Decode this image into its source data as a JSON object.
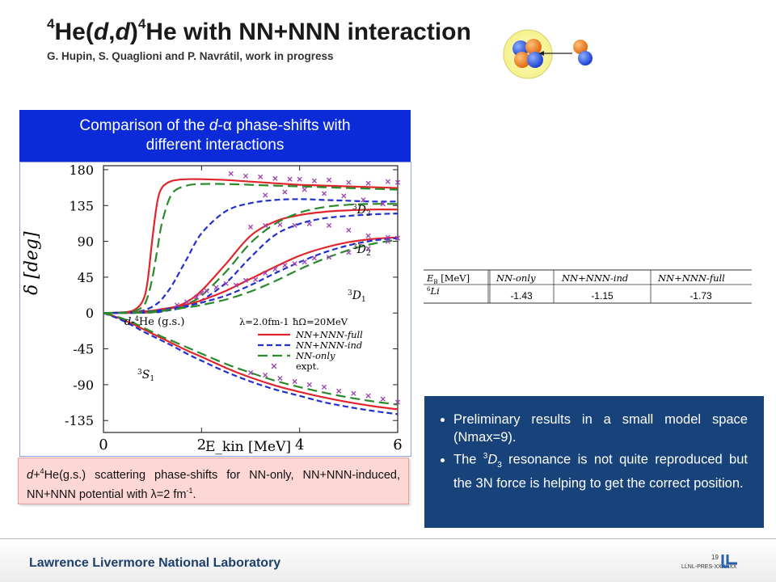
{
  "title": {
    "pre_sup": "4",
    "text_a": "He(",
    "text_d1": "d",
    "text_comma": ",",
    "text_d2": "d",
    "text_close": ")",
    "post_sup": "4",
    "text_b": "He with NN+NNN  interaction"
  },
  "subtitle": "G. Hupin, S. Quaglioni and P. Navrátil, work in progress",
  "banner": {
    "line1_a": "Comparison of the ",
    "line1_d": "d",
    "line1_dash": "-",
    "line1_alpha": "α",
    "line1_b": " phase-shifts with",
    "line2": "different interactions"
  },
  "table": {
    "header_col0_a": "E",
    "header_col0_sub": "B",
    "header_col0_b": " [MeV]",
    "header_col1": "NN-only",
    "header_col2": "NN+NNN-ind",
    "header_col3": "NN+NNN-full",
    "row_label_sup": "6",
    "row_label": "Li",
    "values": [
      "-1.43",
      "-1.15",
      "-1.73"
    ]
  },
  "caption": {
    "a": "d+",
    "sup": "4",
    "b": "He(g.s.) scattering phase-shifts for NN-only, NN+NNN-induced, NN+NNN potential with ",
    "lambda": "λ",
    "c": "=2 fm",
    "sup2": "-1",
    "d": "."
  },
  "bullets": {
    "b1": "Preliminary results in a small model space (Nmax=9).",
    "b2_a": "The ",
    "b2_sup": "3",
    "b2_D": "D",
    "b2_sub": "3",
    "b2_b": " resonance is not quite reproduced but the 3N force is helping to get the correct position."
  },
  "footer": {
    "lab": "Lawrence Livermore National Laboratory",
    "page": "19",
    "doc_id": "LLNL-PRES-XXXXXX"
  },
  "colors": {
    "full": "#e0262c",
    "ind": "#2030d0",
    "nnonly": "#2a8a2a",
    "expt": "#9b3fb0",
    "banner": "#0b2bd8",
    "bullet_box": "#17427a"
  },
  "chart_data": {
    "type": "line",
    "title": "",
    "xlabel": "E_kin [MeV]",
    "ylabel": "δ [deg]",
    "xlim": [
      0,
      6
    ],
    "ylim": [
      -150,
      185
    ],
    "x_ticks": [
      0,
      2,
      4,
      6
    ],
    "y_ticks": [
      180,
      135,
      90,
      45,
      0,
      -45,
      -90,
      -135
    ],
    "annotations": [
      "d-4He (g.s.)",
      "λ=2.0fm-1",
      "ħΩ=20MeV",
      "3D3",
      "3D2",
      "3D1",
      "3S1"
    ],
    "legend": [
      "NN+NNN-full",
      "NN+NNN-ind",
      "NN-only",
      "expt."
    ],
    "legend_position": "bottom-right",
    "x": [
      0,
      0.3,
      0.6,
      0.8,
      0.9,
      1.0,
      1.1,
      1.2,
      1.4,
      1.7,
      2.0,
      2.5,
      3.0,
      3.5,
      4.0,
      4.5,
      5.0,
      5.5,
      6.0
    ],
    "series": [
      {
        "name": "NN+NNN-full",
        "wave": "3D3",
        "values": [
          0,
          0.5,
          3,
          15,
          40,
          95,
          140,
          158,
          166,
          168,
          168,
          167,
          165,
          163,
          161,
          160,
          159,
          158,
          157
        ]
      },
      {
        "name": "NN+NNN-ind",
        "wave": "3D3",
        "values": [
          0,
          0.2,
          1,
          3,
          5,
          8,
          12,
          18,
          35,
          68,
          100,
          128,
          138,
          142,
          143,
          142,
          141,
          140,
          140
        ]
      },
      {
        "name": "NN-only",
        "wave": "3D3",
        "values": [
          0,
          0.3,
          2,
          8,
          20,
          45,
          80,
          115,
          150,
          160,
          162,
          162,
          161,
          160,
          159,
          158,
          157,
          156,
          155
        ]
      },
      {
        "name": "NN+NNN-full",
        "wave": "3D2",
        "values": [
          0,
          0,
          0.2,
          0.5,
          0.8,
          1,
          2,
          3,
          6,
          14,
          28,
          62,
          97,
          115,
          123,
          127,
          129,
          130,
          130
        ]
      },
      {
        "name": "NN+NNN-ind",
        "wave": "3D2",
        "values": [
          0,
          0,
          0.1,
          0.3,
          0.5,
          0.8,
          1,
          2,
          4,
          8,
          16,
          38,
          70,
          98,
          112,
          119,
          122,
          124,
          125
        ]
      },
      {
        "name": "NN-only",
        "wave": "3D2",
        "values": [
          0,
          0,
          0.2,
          0.4,
          0.6,
          0.9,
          1.5,
          2.5,
          5,
          11,
          22,
          52,
          88,
          112,
          126,
          133,
          136,
          137,
          137
        ]
      },
      {
        "name": "NN+NNN-full",
        "wave": "3D1",
        "values": [
          0,
          0.5,
          1,
          2,
          2.5,
          3,
          4,
          5,
          7,
          11,
          16,
          28,
          43,
          58,
          72,
          82,
          89,
          93,
          95
        ]
      },
      {
        "name": "NN+NNN-ind",
        "wave": "3D1",
        "values": [
          0,
          0.4,
          0.8,
          1.5,
          2,
          2.5,
          3,
          4,
          6,
          9,
          13,
          22,
          35,
          50,
          64,
          76,
          85,
          91,
          94
        ]
      },
      {
        "name": "NN-only",
        "wave": "3D1",
        "values": [
          0,
          0.3,
          0.6,
          1,
          1.5,
          2,
          2.5,
          3,
          4.5,
          7,
          10,
          17,
          27,
          40,
          55,
          68,
          79,
          87,
          92
        ]
      },
      {
        "name": "NN+NNN-full",
        "wave": "3S1",
        "values": [
          0,
          -6,
          -14,
          -20,
          -23,
          -26,
          -29,
          -32,
          -38,
          -47,
          -55,
          -69,
          -81,
          -91,
          -99,
          -106,
          -112,
          -117,
          -121
        ]
      },
      {
        "name": "NN+NNN-ind",
        "wave": "3S1",
        "values": [
          0,
          -7,
          -16,
          -23,
          -26,
          -29,
          -32,
          -35,
          -41,
          -51,
          -60,
          -74,
          -86,
          -96,
          -104,
          -112,
          -118,
          -123,
          -127
        ]
      },
      {
        "name": "NN-only",
        "wave": "3S1",
        "values": [
          0,
          -5,
          -12,
          -18,
          -21,
          -24,
          -27,
          -30,
          -35,
          -43,
          -51,
          -64,
          -75,
          -85,
          -93,
          -100,
          -106,
          -111,
          -115
        ]
      }
    ],
    "expt": {
      "3D3": [
        [
          2.6,
          175
        ],
        [
          2.9,
          172
        ],
        [
          3.2,
          171
        ],
        [
          3.5,
          169
        ],
        [
          3.8,
          168
        ],
        [
          4.0,
          168
        ],
        [
          4.3,
          166
        ],
        [
          4.6,
          167
        ],
        [
          5.0,
          164
        ],
        [
          5.4,
          163
        ],
        [
          5.8,
          165
        ],
        [
          6.0,
          164
        ],
        [
          3.3,
          148
        ],
        [
          3.7,
          152
        ],
        [
          4.1,
          155
        ],
        [
          4.5,
          150
        ],
        [
          4.9,
          147
        ],
        [
          5.3,
          142
        ],
        [
          5.7,
          137
        ]
      ],
      "3D2": [
        [
          3.0,
          108
        ],
        [
          3.3,
          110
        ],
        [
          3.6,
          111
        ],
        [
          3.9,
          110
        ],
        [
          4.2,
          112
        ],
        [
          4.6,
          110
        ],
        [
          5.0,
          104
        ],
        [
          5.4,
          97
        ],
        [
          5.8,
          95
        ]
      ],
      "3D1": [
        [
          1.5,
          10
        ],
        [
          1.7,
          14
        ],
        [
          1.9,
          20
        ],
        [
          2.0,
          25
        ],
        [
          2.1,
          28
        ],
        [
          2.3,
          32
        ],
        [
          2.5,
          37
        ],
        [
          2.7,
          35
        ],
        [
          2.9,
          41
        ],
        [
          3.1,
          42
        ],
        [
          3.3,
          50
        ],
        [
          3.5,
          55
        ],
        [
          3.7,
          60
        ],
        [
          3.9,
          62
        ],
        [
          4.1,
          64
        ],
        [
          4.3,
          69
        ],
        [
          4.6,
          70
        ],
        [
          5.0,
          76
        ],
        [
          5.4,
          81
        ],
        [
          5.8,
          90
        ],
        [
          6.0,
          94
        ]
      ],
      "3S1": [
        [
          3.0,
          -75
        ],
        [
          3.3,
          -78
        ],
        [
          3.6,
          -82
        ],
        [
          3.9,
          -86
        ],
        [
          4.2,
          -90
        ],
        [
          4.5,
          -93
        ],
        [
          4.8,
          -98
        ],
        [
          5.1,
          -101
        ],
        [
          5.4,
          -104
        ],
        [
          5.7,
          -108
        ],
        [
          6.0,
          -112
        ]
      ]
    }
  }
}
